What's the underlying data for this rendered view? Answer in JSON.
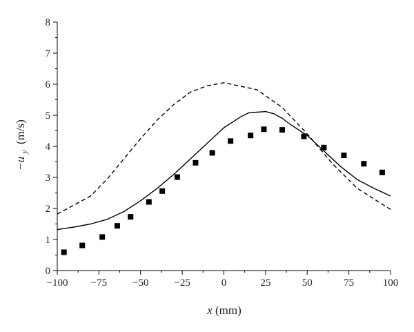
{
  "chart_data": {
    "type": "line",
    "xlabel_var": "x",
    "xlabel_unit": "(mm)",
    "ylabel_prefix": "−u",
    "ylabel_sub": "y",
    "ylabel_unit": "(m/s)",
    "xlim": [
      -100,
      100
    ],
    "ylim": [
      0,
      8
    ],
    "xticks": [
      -100,
      -75,
      -50,
      -25,
      0,
      25,
      50,
      75,
      100
    ],
    "xtick_labels": [
      "−100",
      "−75",
      "−50",
      "−25",
      "0",
      "25",
      "50",
      "75",
      "100"
    ],
    "yticks": [
      0,
      1,
      2,
      3,
      4,
      5,
      6,
      7,
      8
    ],
    "ytick_labels": [
      "0",
      "1",
      "2",
      "3",
      "4",
      "5",
      "6",
      "7",
      "8"
    ],
    "grid": false,
    "series": [
      {
        "style": "dashed-line",
        "color": "#000000",
        "x": [
          -100,
          -80,
          -70,
          -60,
          -50,
          -40,
          -30,
          -20,
          -10,
          0,
          20,
          35,
          50,
          65,
          80,
          100
        ],
        "y": [
          1.82,
          2.4,
          2.95,
          3.6,
          4.25,
          4.85,
          5.35,
          5.75,
          5.95,
          6.05,
          5.82,
          5.25,
          4.4,
          3.45,
          2.65,
          1.97
        ]
      },
      {
        "style": "solid-line",
        "color": "#000000",
        "x": [
          -100,
          -90,
          -80,
          -70,
          -60,
          -50,
          -40,
          -30,
          -20,
          -10,
          0,
          10,
          15,
          20,
          25,
          30,
          35,
          40,
          50,
          60,
          70,
          80,
          90,
          100
        ],
        "y": [
          1.32,
          1.4,
          1.5,
          1.65,
          1.9,
          2.25,
          2.65,
          3.1,
          3.6,
          4.1,
          4.6,
          4.95,
          5.08,
          5.1,
          5.12,
          5.05,
          4.9,
          4.7,
          4.35,
          3.85,
          3.35,
          2.93,
          2.65,
          2.4
        ]
      },
      {
        "style": "square-markers",
        "color": "#000000",
        "x": [
          -96,
          -85,
          -73,
          -64,
          -56,
          -45,
          -37,
          -28,
          -17,
          -7,
          4,
          16,
          24,
          35,
          48,
          60,
          72,
          84,
          95
        ],
        "y": [
          0.59,
          0.81,
          1.08,
          1.44,
          1.73,
          2.21,
          2.56,
          3.01,
          3.47,
          3.79,
          4.17,
          4.35,
          4.55,
          4.53,
          4.32,
          3.96,
          3.71,
          3.44,
          3.16
        ]
      }
    ]
  }
}
